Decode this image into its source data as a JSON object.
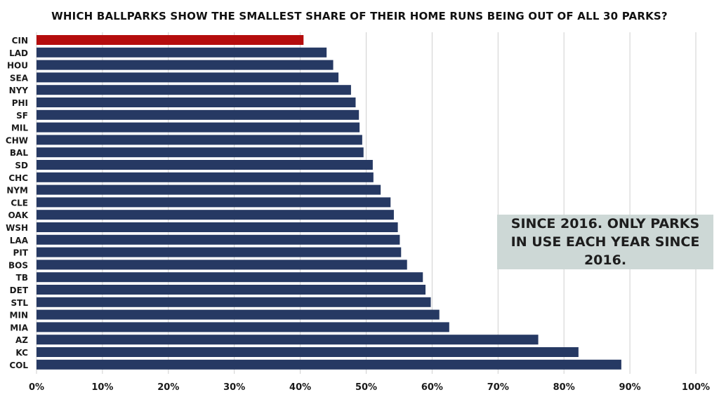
{
  "chart_data": {
    "type": "bar",
    "orientation": "horizontal",
    "title": "WHICH BALLPARKS SHOW THE SMALLEST SHARE OF THEIR HOME RUNS BEING OUT OF ALL 30 PARKS?",
    "categories": [
      "CIN",
      "LAD",
      "HOU",
      "SEA",
      "NYY",
      "PHI",
      "SF",
      "MIL",
      "CHW",
      "BAL",
      "SD",
      "CHC",
      "NYM",
      "CLE",
      "OAK",
      "WSH",
      "LAA",
      "PIT",
      "BOS",
      "TB",
      "DET",
      "STL",
      "MIN",
      "MIA",
      "AZ",
      "KC",
      "COL"
    ],
    "values": [
      40.5,
      44.0,
      45.0,
      45.8,
      47.7,
      48.4,
      48.9,
      49.0,
      49.4,
      49.6,
      51.0,
      51.1,
      52.2,
      53.7,
      54.2,
      54.8,
      55.1,
      55.3,
      56.2,
      58.6,
      59.0,
      59.8,
      61.1,
      62.6,
      76.1,
      82.2,
      88.7
    ],
    "highlight": "CIN",
    "xlim": [
      0,
      100
    ],
    "x_ticks": [
      "0%",
      "10%",
      "20%",
      "30%",
      "40%",
      "50%",
      "60%",
      "70%",
      "80%",
      "90%",
      "100%"
    ],
    "grid": "vertical",
    "annotation": "SINCE 2016. ONLY PARKS IN USE EACH YEAR SINCE 2016.",
    "colors": {
      "bar": "#263963",
      "highlight": "#b50d0d",
      "grid": "#cfcfcf",
      "note_bg": "#cdd8d6"
    }
  }
}
